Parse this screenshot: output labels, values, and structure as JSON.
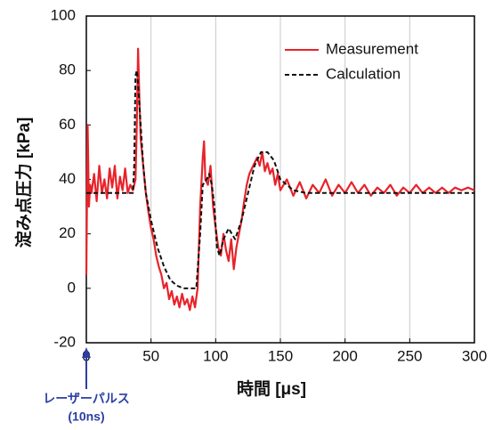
{
  "chart_data": {
    "type": "line",
    "xlabel": "時間 [μs]",
    "ylabel": "淀み点圧力 [kPa]",
    "xlim": [
      0,
      300
    ],
    "xticks": [
      0,
      50,
      100,
      150,
      200,
      250,
      300
    ],
    "ylim": [
      -20,
      100
    ],
    "yticks": [
      -20,
      0,
      20,
      40,
      60,
      80,
      100
    ],
    "grid": "x",
    "legend": "upper right",
    "annotations": [
      "レーザーパルス",
      "(10ns)"
    ],
    "annotation_color": "#2b3fa3",
    "series": [
      {
        "name": "Measurement",
        "color": "#e8232a",
        "dash": "solid",
        "x": [
          0,
          1,
          2,
          3,
          4,
          6,
          8,
          10,
          12,
          14,
          16,
          18,
          20,
          22,
          24,
          26,
          28,
          30,
          32,
          34,
          36,
          38,
          39,
          40,
          41,
          42,
          44,
          46,
          48,
          50,
          52,
          54,
          56,
          58,
          60,
          62,
          64,
          66,
          68,
          70,
          72,
          74,
          76,
          78,
          80,
          82,
          84,
          86,
          88,
          90,
          91,
          92,
          94,
          96,
          98,
          100,
          102,
          104,
          106,
          108,
          110,
          112,
          114,
          116,
          118,
          120,
          122,
          124,
          126,
          128,
          130,
          132,
          134,
          136,
          138,
          140,
          142,
          144,
          146,
          148,
          150,
          155,
          160,
          165,
          170,
          175,
          180,
          185,
          190,
          195,
          200,
          205,
          210,
          215,
          220,
          225,
          230,
          235,
          240,
          245,
          250,
          255,
          260,
          265,
          270,
          275,
          280,
          285,
          290,
          295,
          300
        ],
        "values": [
          5,
          60,
          30,
          38,
          35,
          42,
          32,
          45,
          35,
          40,
          33,
          44,
          37,
          45,
          33,
          41,
          36,
          44,
          35,
          38,
          36,
          40,
          60,
          88,
          70,
          55,
          45,
          35,
          28,
          22,
          18,
          12,
          8,
          5,
          0,
          2,
          -4,
          -1,
          -6,
          -3,
          -7,
          -2,
          -6,
          -4,
          -8,
          -3,
          -7,
          0,
          30,
          48,
          54,
          40,
          38,
          45,
          30,
          22,
          15,
          12,
          20,
          14,
          10,
          18,
          7,
          15,
          20,
          25,
          32,
          38,
          42,
          44,
          46,
          48,
          45,
          50,
          43,
          46,
          42,
          44,
          38,
          42,
          36,
          40,
          34,
          39,
          33,
          38,
          35,
          40,
          34,
          38,
          35,
          39,
          35,
          38,
          34,
          37,
          35,
          38,
          34,
          37,
          35,
          38,
          35,
          37,
          35,
          37,
          35,
          37,
          36,
          37,
          36
        ]
      },
      {
        "name": "Calculation",
        "color": "#111111",
        "dash": "dashed",
        "x": [
          0,
          36,
          37,
          38,
          39,
          40,
          42,
          44,
          46,
          50,
          55,
          60,
          65,
          70,
          75,
          80,
          85,
          88,
          90,
          93,
          95,
          97,
          99,
          101,
          103,
          106,
          110,
          115,
          120,
          125,
          130,
          135,
          140,
          145,
          150,
          155,
          160,
          170,
          200,
          300
        ],
        "values": [
          35,
          35,
          45,
          78,
          80,
          75,
          60,
          45,
          35,
          25,
          15,
          8,
          3,
          1,
          0,
          0,
          0,
          20,
          38,
          40,
          42,
          38,
          30,
          15,
          12,
          18,
          22,
          18,
          25,
          35,
          45,
          50,
          50,
          47,
          40,
          38,
          36,
          35,
          35,
          35
        ]
      }
    ]
  }
}
